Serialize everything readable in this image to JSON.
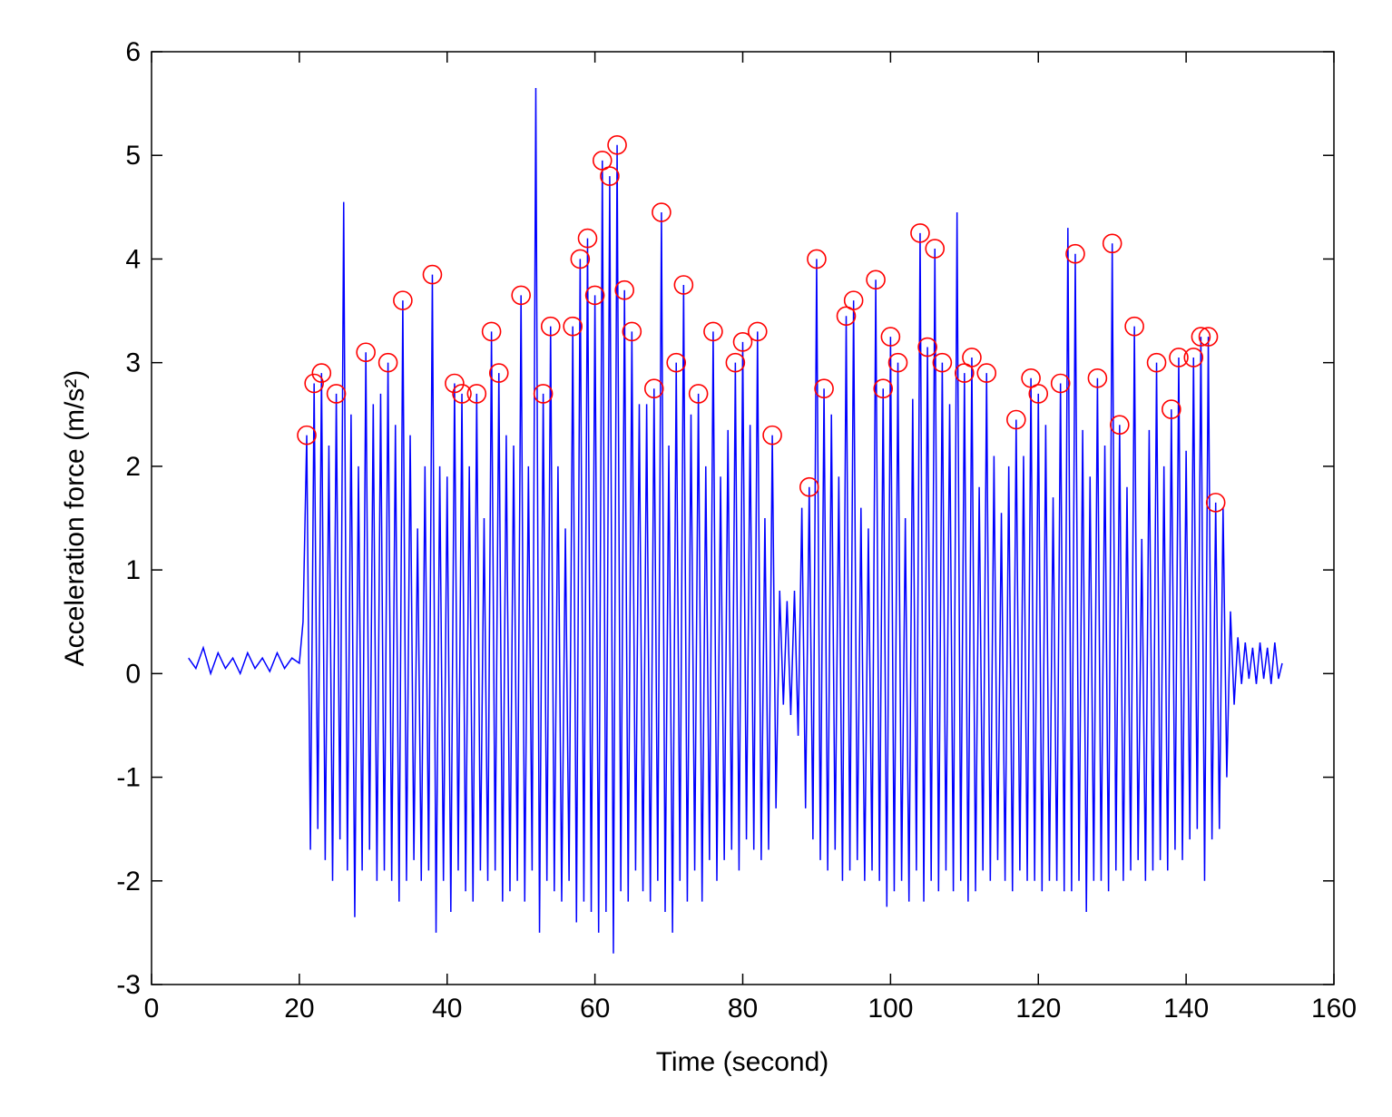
{
  "chart_data": {
    "type": "line",
    "xlabel": "Time (second)",
    "ylabel": "Acceleration force (m/s²)",
    "xlim": [
      0,
      160
    ],
    "ylim": [
      -3,
      6
    ],
    "xticks": [
      0,
      20,
      40,
      60,
      80,
      100,
      120,
      140,
      160
    ],
    "yticks": [
      -3,
      -2,
      -1,
      0,
      1,
      2,
      3,
      4,
      5,
      6
    ],
    "grid": false,
    "series": [
      {
        "color": "#0000ff",
        "marker": "none",
        "x": [
          5,
          6,
          7,
          8,
          9,
          10,
          11,
          12,
          13,
          14,
          15,
          16,
          17,
          18,
          19,
          20,
          20.5,
          21,
          21.5,
          22,
          22.5,
          23,
          23.5,
          24,
          24.5,
          25,
          25.5,
          26,
          26.5,
          27,
          27.5,
          28,
          28.5,
          29,
          29.5,
          30,
          30.5,
          31,
          31.5,
          32,
          32.5,
          33,
          33.5,
          34,
          34.5,
          35,
          35.5,
          36,
          36.5,
          37,
          37.5,
          38,
          38.5,
          39,
          39.5,
          40,
          40.5,
          41,
          41.5,
          42,
          42.5,
          43,
          43.5,
          44,
          44.5,
          45,
          45.5,
          46,
          46.5,
          47,
          47.5,
          48,
          48.5,
          49,
          49.5,
          50,
          50.5,
          51,
          51.5,
          52,
          52.5,
          53,
          53.5,
          54,
          54.5,
          55,
          55.5,
          56,
          56.5,
          57,
          57.5,
          58,
          58.5,
          59,
          59.5,
          60,
          60.5,
          61,
          61.5,
          62,
          62.5,
          63,
          63.5,
          64,
          64.5,
          65,
          65.5,
          66,
          66.5,
          67,
          67.5,
          68,
          68.5,
          69,
          69.5,
          70,
          70.5,
          71,
          71.5,
          72,
          72.5,
          73,
          73.5,
          74,
          74.5,
          75,
          75.5,
          76,
          76.5,
          77,
          77.5,
          78,
          78.5,
          79,
          79.5,
          80,
          80.5,
          81,
          81.5,
          82,
          82.5,
          83,
          83.5,
          84,
          84.5,
          85,
          85.5,
          86,
          86.5,
          87,
          87.5,
          88,
          88.5,
          89,
          89.5,
          90,
          90.5,
          91,
          91.5,
          92,
          92.5,
          93,
          93.5,
          94,
          94.5,
          95,
          95.5,
          96,
          96.5,
          97,
          97.5,
          98,
          98.5,
          99,
          99.5,
          100,
          100.5,
          101,
          101.5,
          102,
          102.5,
          103,
          103.5,
          104,
          104.5,
          105,
          105.5,
          106,
          106.5,
          107,
          107.5,
          108,
          108.5,
          109,
          109.5,
          110,
          110.5,
          111,
          111.5,
          112,
          112.5,
          113,
          113.5,
          114,
          114.5,
          115,
          115.5,
          116,
          116.5,
          117,
          117.5,
          118,
          118.5,
          119,
          119.5,
          120,
          120.5,
          121,
          121.5,
          122,
          122.5,
          123,
          123.5,
          124,
          124.5,
          125,
          125.5,
          126,
          126.5,
          127,
          127.5,
          128,
          128.5,
          129,
          129.5,
          130,
          130.5,
          131,
          131.5,
          132,
          132.5,
          133,
          133.5,
          134,
          134.5,
          135,
          135.5,
          136,
          136.5,
          137,
          137.5,
          138,
          138.5,
          139,
          139.5,
          140,
          140.5,
          141,
          141.5,
          142,
          142.5,
          143,
          143.5,
          144,
          144.5,
          145,
          145.5,
          146,
          146.5,
          147,
          147.5,
          148,
          148.5,
          149,
          149.5,
          150,
          150.5,
          151,
          151.5,
          152,
          152.5,
          153
        ],
        "values": [
          0.15,
          0.05,
          0.25,
          0.0,
          0.2,
          0.05,
          0.15,
          0.0,
          0.2,
          0.05,
          0.15,
          0.02,
          0.2,
          0.05,
          0.15,
          0.1,
          0.5,
          2.3,
          -1.7,
          2.8,
          -1.5,
          2.9,
          -1.8,
          2.2,
          -2.0,
          2.7,
          -1.6,
          4.55,
          -1.9,
          2.5,
          -2.35,
          2.0,
          -1.9,
          3.1,
          -1.7,
          2.6,
          -2.0,
          2.7,
          -1.9,
          3.0,
          -2.0,
          2.4,
          -2.2,
          3.6,
          -2.0,
          2.3,
          -1.8,
          1.4,
          -2.0,
          2.0,
          -1.9,
          3.85,
          -2.5,
          2.0,
          -2.0,
          1.9,
          -2.3,
          2.8,
          -1.9,
          2.7,
          -2.1,
          2.0,
          -2.2,
          2.7,
          -1.9,
          1.5,
          -2.0,
          3.3,
          -1.9,
          2.9,
          -2.2,
          2.3,
          -2.1,
          2.2,
          -2.0,
          3.65,
          -2.2,
          2.0,
          -1.9,
          5.65,
          -2.5,
          2.7,
          -2.0,
          3.35,
          -2.1,
          2.0,
          -2.2,
          1.4,
          -2.0,
          3.35,
          -2.4,
          4.0,
          -2.2,
          4.2,
          -2.3,
          3.65,
          -2.5,
          4.95,
          -2.3,
          4.8,
          -2.7,
          5.1,
          -2.1,
          3.7,
          -2.2,
          3.3,
          -1.9,
          2.6,
          -2.1,
          2.6,
          -2.2,
          2.75,
          -2.0,
          4.45,
          -2.3,
          2.2,
          -2.5,
          3.0,
          -2.0,
          3.75,
          -2.2,
          2.5,
          -1.9,
          2.7,
          -2.2,
          2.0,
          -1.8,
          3.3,
          -2.0,
          1.9,
          -1.8,
          2.35,
          -1.7,
          3.0,
          -1.9,
          3.2,
          -1.6,
          2.4,
          -1.7,
          3.3,
          -1.8,
          1.5,
          -1.7,
          2.3,
          -1.3,
          0.8,
          -0.3,
          0.7,
          -0.4,
          0.8,
          -0.6,
          1.6,
          -1.3,
          1.8,
          -1.6,
          4.0,
          -1.8,
          2.75,
          -1.9,
          2.5,
          -1.7,
          1.9,
          -2.0,
          3.45,
          -1.9,
          3.6,
          -1.8,
          1.6,
          -2.0,
          1.4,
          -1.9,
          3.8,
          -2.0,
          2.75,
          -2.25,
          3.25,
          -2.1,
          3.0,
          -2.0,
          1.5,
          -2.2,
          2.65,
          -1.9,
          4.25,
          -2.2,
          3.15,
          -2.0,
          4.1,
          -2.1,
          3.0,
          -1.9,
          2.6,
          -2.1,
          4.45,
          -2.0,
          2.9,
          -2.2,
          3.05,
          -2.1,
          1.8,
          -1.9,
          2.9,
          -2.0,
          2.1,
          -1.8,
          1.55,
          -2.0,
          2.0,
          -2.1,
          2.45,
          -1.9,
          2.1,
          -2.0,
          2.85,
          -2.0,
          2.7,
          -2.1,
          2.4,
          -2.0,
          1.7,
          -2.0,
          2.8,
          -2.1,
          4.3,
          -2.1,
          4.05,
          -2.0,
          2.35,
          -2.3,
          1.9,
          -2.0,
          2.85,
          -2.0,
          2.2,
          -2.1,
          4.15,
          -1.9,
          2.4,
          -2.0,
          1.8,
          -1.9,
          3.35,
          -1.8,
          1.3,
          -2.0,
          2.35,
          -1.9,
          3.0,
          -1.8,
          2.0,
          -1.9,
          2.55,
          -1.7,
          3.05,
          -1.8,
          2.15,
          -1.6,
          3.05,
          -1.5,
          3.25,
          -2.0,
          3.25,
          -1.6,
          1.65,
          -1.5,
          1.6,
          -1.0,
          0.6,
          -0.3,
          0.35,
          -0.1,
          0.3,
          -0.05,
          0.25,
          -0.1,
          0.3,
          -0.05,
          0.25,
          -0.1,
          0.3,
          -0.05,
          0.1
        ]
      },
      {
        "color": "#ff0000",
        "marker": "circle",
        "x": [
          21,
          22,
          23,
          25,
          29,
          32,
          34,
          38,
          41,
          42,
          44,
          46,
          47,
          50,
          53,
          54,
          57,
          58,
          59,
          60,
          61,
          62,
          63,
          64,
          65,
          68,
          69,
          71,
          72,
          74,
          76,
          79,
          80,
          82,
          84,
          89,
          90,
          91,
          94,
          95,
          98,
          99,
          100,
          101,
          104,
          105,
          106,
          107,
          110,
          111,
          113,
          117,
          119,
          120,
          123,
          125,
          128,
          130,
          131,
          133,
          136,
          138,
          139,
          141,
          142,
          143,
          144
        ],
        "values": [
          2.3,
          2.8,
          2.9,
          2.7,
          3.1,
          3.0,
          3.6,
          3.85,
          2.8,
          2.7,
          2.7,
          3.3,
          2.9,
          3.65,
          2.7,
          3.35,
          3.35,
          4.0,
          4.2,
          3.65,
          4.95,
          4.8,
          5.1,
          3.7,
          3.3,
          2.75,
          4.45,
          3.0,
          3.75,
          2.7,
          3.3,
          3.0,
          3.2,
          3.3,
          2.3,
          1.8,
          4.0,
          2.75,
          3.45,
          3.6,
          3.8,
          2.75,
          3.25,
          3.0,
          4.25,
          3.15,
          4.1,
          3.0,
          2.9,
          3.05,
          2.9,
          2.45,
          2.85,
          2.7,
          2.8,
          4.05,
          2.85,
          4.15,
          2.4,
          3.35,
          3.0,
          2.55,
          3.05,
          3.05,
          3.25,
          3.25,
          1.65
        ]
      }
    ]
  }
}
